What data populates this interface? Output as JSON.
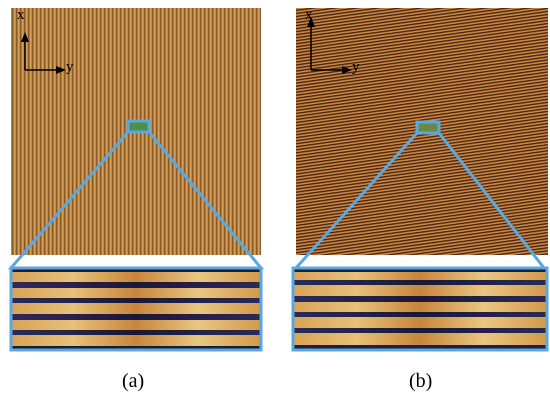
{
  "panels": [
    {
      "caption": "(a)",
      "axis_x": "x",
      "axis_y": "y"
    },
    {
      "caption": "(b)",
      "axis_x": "x",
      "axis_y": "y"
    }
  ],
  "colors": {
    "panel_a_base": "#b8863f",
    "panel_b_base": "#a65a28",
    "highlight": "#5aa8e0",
    "axis": "#000000"
  }
}
